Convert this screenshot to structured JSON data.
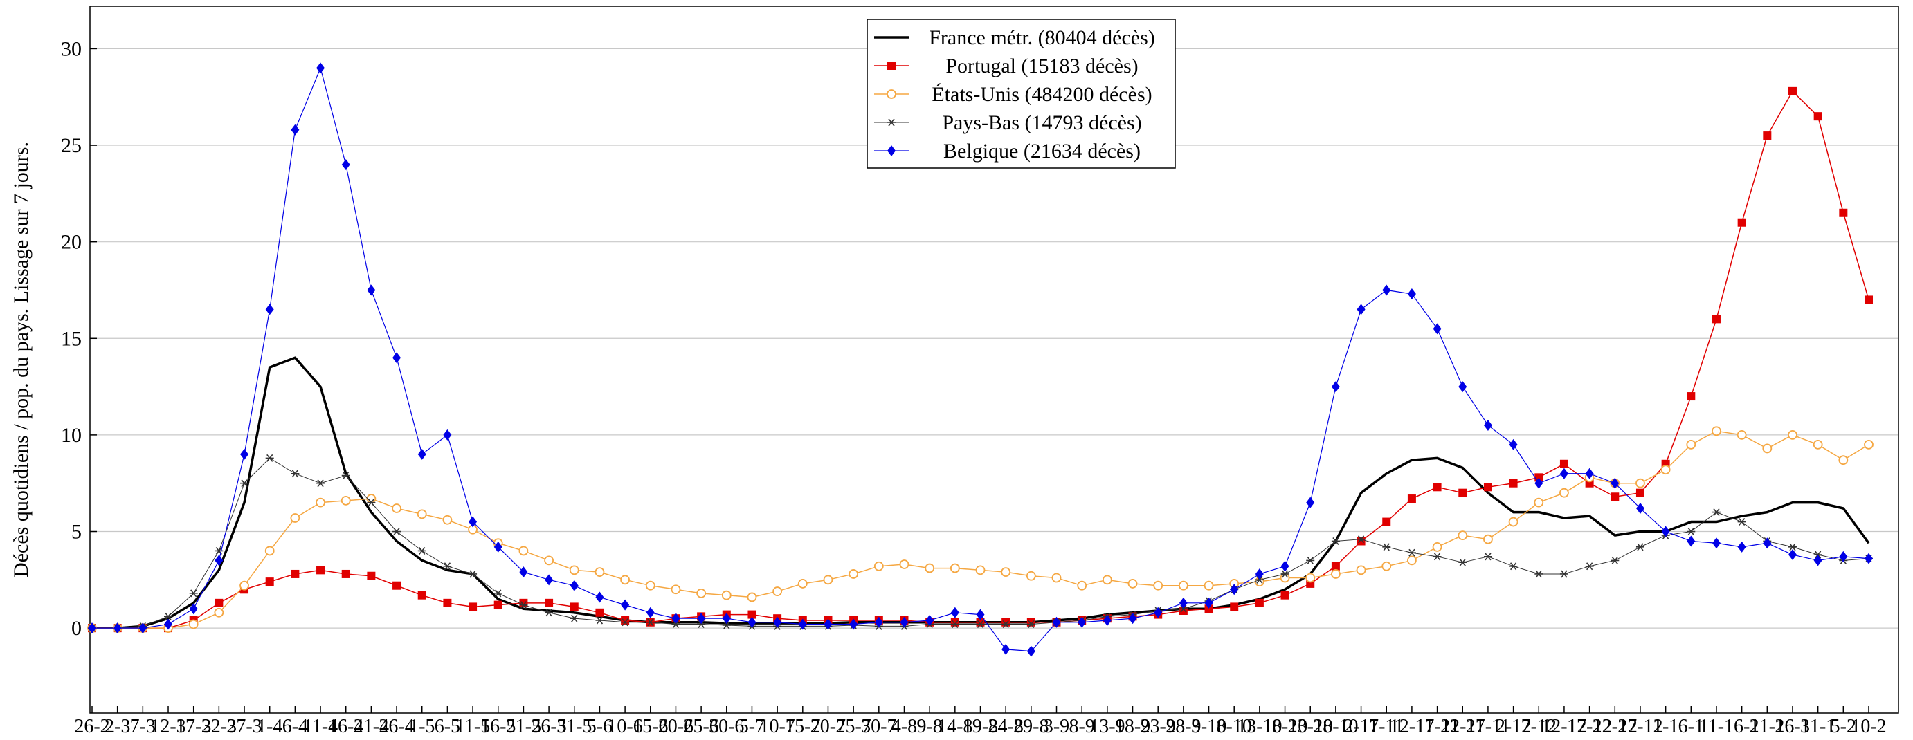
{
  "chart_data": {
    "type": "line",
    "y_label": "Décès quotidiens / pop. du pays. Lissage sur 7 jours.",
    "categories": [
      "26-2",
      "2-3",
      "7-3",
      "12-3",
      "17-3",
      "22-3",
      "27-3",
      "1-4",
      "6-4",
      "11-4",
      "16-4",
      "21-4",
      "26-4",
      "1-5",
      "6-5",
      "11-5",
      "16-5",
      "21-5",
      "26-5",
      "31-5",
      "5-6",
      "10-6",
      "15-6",
      "20-6",
      "25-6",
      "30-6",
      "5-7",
      "10-7",
      "15-7",
      "20-7",
      "25-7",
      "30-7",
      "4-8",
      "9-8",
      "14-8",
      "19-8",
      "24-8",
      "29-8",
      "3-9",
      "8-9",
      "13-9",
      "18-9",
      "23-9",
      "28-9",
      "3-10",
      "8-10",
      "13-10",
      "18-10",
      "23-10",
      "28-10",
      "2-11",
      "7-11",
      "12-11",
      "17-11",
      "22-11",
      "27-11",
      "2-12",
      "7-12",
      "12-12",
      "17-12",
      "22-12",
      "27-12",
      "1-1",
      "6-1",
      "11-1",
      "16-1",
      "21-1",
      "26-1",
      "31-1",
      "5-2",
      "10-2"
    ],
    "series": [
      {
        "name": "France métr. (80404 décès)",
        "color": "#000000",
        "marker": "none",
        "line_width": 3.5,
        "values": [
          0,
          0,
          0.1,
          0.5,
          1.3,
          3,
          6.5,
          13.5,
          14,
          12.5,
          8,
          6,
          4.5,
          3.5,
          3,
          2.8,
          1.5,
          1,
          0.9,
          0.8,
          0.6,
          0.4,
          0.3,
          0.3,
          0.3,
          0.25,
          0.25,
          0.25,
          0.25,
          0.25,
          0.3,
          0.3,
          0.3,
          0.3,
          0.3,
          0.3,
          0.3,
          0.3,
          0.4,
          0.5,
          0.7,
          0.8,
          0.9,
          1.0,
          1.0,
          1.2,
          1.5,
          2,
          2.8,
          4.5,
          7,
          8,
          8.7,
          8.8,
          8.3,
          7,
          6,
          6,
          5.7,
          5.8,
          4.8,
          5,
          5,
          5.5,
          5.5,
          5.8,
          6.0,
          6.5,
          6.5,
          6.2,
          4.4
        ]
      },
      {
        "name": "Portugal (15183 décès)",
        "color": "#e00000",
        "marker": "square",
        "line_width": 1.5,
        "values": [
          0,
          0,
          0,
          0,
          0.4,
          1.3,
          2.0,
          2.4,
          2.8,
          3.0,
          2.8,
          2.7,
          2.2,
          1.7,
          1.3,
          1.1,
          1.2,
          1.3,
          1.3,
          1.1,
          0.8,
          0.4,
          0.3,
          0.5,
          0.6,
          0.7,
          0.7,
          0.5,
          0.4,
          0.4,
          0.4,
          0.4,
          0.4,
          0.3,
          0.3,
          0.3,
          0.3,
          0.3,
          0.3,
          0.4,
          0.5,
          0.6,
          0.7,
          0.9,
          1.0,
          1.1,
          1.3,
          1.7,
          2.3,
          3.2,
          4.5,
          5.5,
          6.7,
          7.3,
          7.0,
          7.3,
          7.5,
          7.8,
          8.5,
          7.5,
          6.8,
          7,
          8.5,
          12,
          16,
          21,
          25.5,
          27.8,
          26.5,
          21.5,
          17
        ]
      },
      {
        "name": "États-Unis (484200 décès)",
        "color": "#f5a742",
        "marker": "circle",
        "line_width": 1.5,
        "values": [
          0,
          0,
          0,
          0,
          0.2,
          0.8,
          2.2,
          4,
          5.7,
          6.5,
          6.6,
          6.7,
          6.2,
          5.9,
          5.6,
          5.1,
          4.4,
          4.0,
          3.5,
          3.0,
          2.9,
          2.5,
          2.2,
          2.0,
          1.8,
          1.7,
          1.6,
          1.9,
          2.3,
          2.5,
          2.8,
          3.2,
          3.3,
          3.1,
          3.1,
          3.0,
          2.9,
          2.7,
          2.6,
          2.2,
          2.5,
          2.3,
          2.2,
          2.2,
          2.2,
          2.3,
          2.4,
          2.6,
          2.6,
          2.8,
          3.0,
          3.2,
          3.5,
          4.2,
          4.8,
          4.6,
          5.5,
          6.5,
          7.0,
          7.8,
          7.5,
          7.5,
          8.2,
          9.5,
          10.2,
          10.0,
          9.3,
          10.0,
          9.5,
          8.7,
          9.5
        ]
      },
      {
        "name": "Pays-Bas (14793 décès)",
        "color": "#333333",
        "marker": "star",
        "line_width": 1,
        "values": [
          0,
          0,
          0.1,
          0.6,
          1.8,
          4,
          7.5,
          8.8,
          8,
          7.5,
          7.9,
          6.5,
          5,
          4,
          3.2,
          2.8,
          1.8,
          1.2,
          0.8,
          0.5,
          0.4,
          0.3,
          0.3,
          0.2,
          0.2,
          0.15,
          0.1,
          0.1,
          0.1,
          0.1,
          0.15,
          0.1,
          0.1,
          0.2,
          0.2,
          0.2,
          0.2,
          0.2,
          0.3,
          0.4,
          0.6,
          0.7,
          0.9,
          1.0,
          1.4,
          2.0,
          2.5,
          2.8,
          3.5,
          4.5,
          4.6,
          4.2,
          3.9,
          3.7,
          3.4,
          3.7,
          3.2,
          2.8,
          2.8,
          3.2,
          3.5,
          4.2,
          4.8,
          5.0,
          6.0,
          5.5,
          4.5,
          4.2,
          3.8,
          3.5,
          3.6
        ]
      },
      {
        "name": "Belgique (21634 décès)",
        "color": "#0000e6",
        "marker": "diamond",
        "line_width": 1.2,
        "values": [
          0,
          0,
          0,
          0.2,
          1,
          3.5,
          9,
          16.5,
          25.8,
          29,
          24,
          17.5,
          14,
          9,
          10,
          5.5,
          4.2,
          2.9,
          2.5,
          2.2,
          1.6,
          1.2,
          0.8,
          0.5,
          0.5,
          0.5,
          0.3,
          0.3,
          0.2,
          0.2,
          0.2,
          0.3,
          0.3,
          0.4,
          0.8,
          0.7,
          -1.1,
          -1.2,
          0.3,
          0.3,
          0.4,
          0.5,
          0.8,
          1.3,
          1.3,
          2.0,
          2.8,
          3.2,
          6.5,
          12.5,
          16.5,
          17.5,
          17.3,
          15.5,
          12.5,
          10.5,
          9.5,
          7.5,
          8.0,
          8.0,
          7.5,
          6.2,
          5.0,
          4.5,
          4.4,
          4.2,
          4.4,
          3.8,
          3.5,
          3.7,
          3.6
        ]
      }
    ],
    "ylim": [
      -4.4,
      32.2
    ],
    "yticks": [
      0,
      5,
      10,
      15,
      20,
      25,
      30
    ],
    "grid": true,
    "legend": "top-center"
  }
}
